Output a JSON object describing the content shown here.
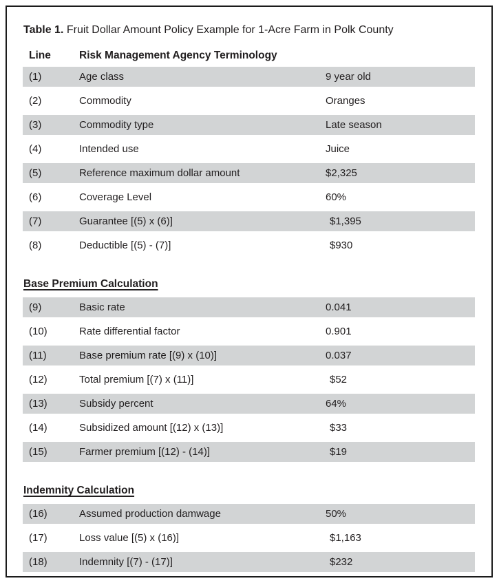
{
  "title": {
    "bold": "Table 1.",
    "rest": " Fruit Dollar Amount Policy Example for 1-Acre Farm in Polk County"
  },
  "header": {
    "line": "Line",
    "terminology": "Risk Management Agency Terminology"
  },
  "colors": {
    "row_gray": "#d2d4d5",
    "border": "#1b1b1b",
    "text": "#211e1f"
  },
  "sections": [
    {
      "heading": "",
      "rows": [
        {
          "line": "(1)",
          "term": "Age class",
          "value": "9 year old",
          "indent": false
        },
        {
          "line": "(2)",
          "term": "Commodity",
          "value": "Oranges",
          "indent": false
        },
        {
          "line": "(3)",
          "term": "Commodity type",
          "value": "Late season",
          "indent": false
        },
        {
          "line": "(4)",
          "term": "Intended use",
          "value": "Juice",
          "indent": false
        },
        {
          "line": "(5)",
          "term": "Reference maximum dollar amount",
          "value": "$2,325",
          "indent": false
        },
        {
          "line": "(6)",
          "term": "Coverage Level",
          "value": "60%",
          "indent": false
        },
        {
          "line": "(7)",
          "term": "Guarantee [(5) x (6)]",
          "value": "$1,395",
          "indent": true
        },
        {
          "line": "(8)",
          "term": "Deductible [(5) - (7)]",
          "value": "$930",
          "indent": true
        }
      ]
    },
    {
      "heading": "Base Premium Calculation",
      "rows": [
        {
          "line": "(9)",
          "term": "Basic rate",
          "value": "0.041",
          "indent": false
        },
        {
          "line": "(10)",
          "term": "Rate differential factor",
          "value": "0.901",
          "indent": false
        },
        {
          "line": "(11)",
          "term": "Base premium rate [(9) x (10)]",
          "value": "0.037",
          "indent": false
        },
        {
          "line": "(12)",
          "term": "Total premium [(7) x (11)]",
          "value": "$52",
          "indent": true
        },
        {
          "line": "(13)",
          "term": "Subsidy percent",
          "value": "64%",
          "indent": false
        },
        {
          "line": "(14)",
          "term": "Subsidized amount [(12) x (13)]",
          "value": "$33",
          "indent": true
        },
        {
          "line": "(15)",
          "term": "Farmer premium [(12) - (14)]",
          "value": "$19",
          "indent": true
        }
      ]
    },
    {
      "heading": "Indemnity Calculation",
      "rows": [
        {
          "line": "(16)",
          "term": "Assumed production damwage",
          "value": "50%",
          "indent": false
        },
        {
          "line": "(17)",
          "term": "Loss value [(5) x (16)]",
          "value": "$1,163",
          "indent": true
        },
        {
          "line": "(18)",
          "term": "Indemnity [(7) - (17)]",
          "value": "$232",
          "indent": true
        }
      ]
    }
  ]
}
